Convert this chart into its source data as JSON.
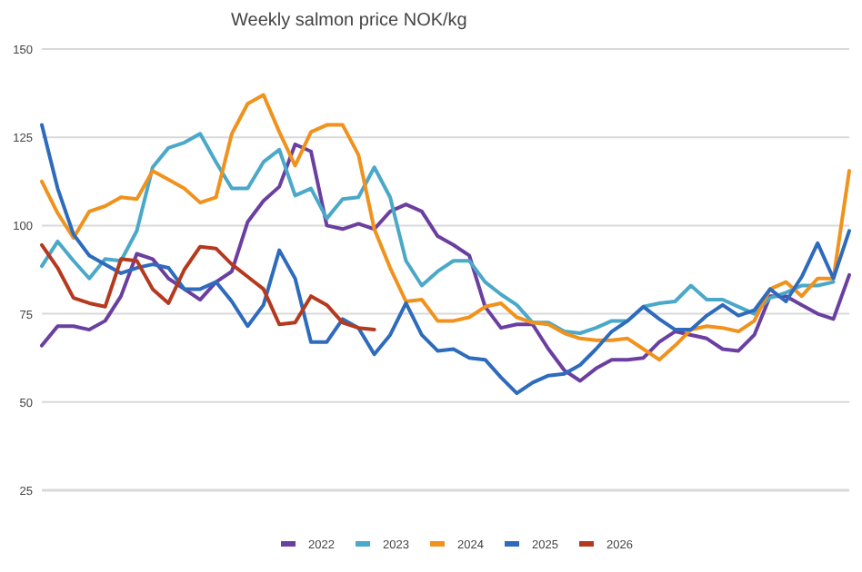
{
  "chart_data": {
    "type": "line",
    "title": "Weekly salmon price NOK/kg",
    "categories": [
      null,
      null,
      null,
      null,
      null,
      null,
      null,
      null,
      null,
      null,
      null,
      null,
      null,
      null,
      null,
      null,
      null,
      null,
      null,
      null,
      null,
      null,
      null,
      null,
      null,
      null,
      null,
      null,
      null,
      null,
      null,
      null,
      null,
      null,
      null,
      null,
      null,
      null,
      null,
      null,
      null,
      null,
      null,
      null,
      null,
      null,
      null,
      null,
      null,
      null,
      null,
      null
    ],
    "series": [
      {
        "name": "2022",
        "color": "#6b3fa0",
        "values": [
          66,
          71.5,
          71.5,
          70.5,
          73,
          80,
          92,
          90.5,
          85,
          82,
          79,
          84,
          87,
          101,
          107,
          111,
          123,
          121,
          100,
          99,
          100.5,
          99,
          104,
          106,
          104,
          97,
          94.5,
          91.5,
          77,
          71,
          72,
          72,
          65,
          59,
          56,
          59.5,
          62,
          62,
          62.5,
          67,
          70,
          69,
          68,
          65,
          64.5,
          69,
          80,
          80,
          77.5,
          75,
          73.5,
          86
        ]
      },
      {
        "name": "2023",
        "color": "#4aa8c8",
        "values": [
          88.5,
          95.5,
          90,
          85,
          90.5,
          90,
          98.5,
          116.5,
          122,
          123.5,
          126,
          118,
          110.5,
          110.5,
          118,
          121.5,
          108.5,
          110.5,
          102,
          107.5,
          108,
          116.5,
          108,
          90,
          83,
          87,
          90,
          90,
          84,
          80.5,
          77.5,
          72.5,
          72.5,
          70,
          69.5,
          71,
          73,
          73,
          77,
          78,
          78.5,
          83,
          79,
          79,
          77,
          75,
          79.5,
          81,
          83,
          83,
          84,
          null
        ]
      },
      {
        "name": "2024",
        "color": "#f0921c",
        "values": [
          112.5,
          103.5,
          96.5,
          104,
          105.5,
          108,
          107.5,
          115.5,
          113,
          110.5,
          106.5,
          108,
          126,
          134.5,
          137,
          126.5,
          117,
          126.5,
          128.5,
          128.5,
          120,
          99,
          88,
          78.5,
          79,
          73,
          73,
          74,
          77,
          78,
          74,
          72.5,
          72,
          69.5,
          68,
          67.5,
          67.5,
          68,
          65,
          62,
          66,
          70.5,
          71.5,
          71,
          70,
          73,
          82,
          84,
          80,
          85,
          85,
          115.5
        ]
      },
      {
        "name": "2025",
        "color": "#2e6bbd",
        "values": [
          128.5,
          110.5,
          97.5,
          91.5,
          89,
          86.5,
          88,
          89,
          88,
          82,
          82,
          84,
          78.5,
          71.5,
          77.5,
          93,
          85,
          67,
          67,
          73.5,
          71,
          63.5,
          69,
          78,
          69,
          64.5,
          65,
          62.5,
          62,
          57,
          52.5,
          55.5,
          57.5,
          58,
          60.5,
          65,
          70,
          73,
          77,
          73.5,
          70.5,
          70.5,
          74.5,
          77.5,
          74.5,
          76,
          82,
          78.5,
          85.5,
          95,
          85,
          98.5
        ]
      },
      {
        "name": "2026",
        "color": "#b5391f",
        "values": [
          94.5,
          88,
          79.5,
          78,
          77,
          90.5,
          90,
          82,
          78,
          87.5,
          94,
          93.5,
          89,
          85.5,
          82,
          72,
          72.5,
          80,
          77.5,
          72.5,
          71,
          70.5,
          null,
          null,
          null,
          null,
          null,
          null,
          null,
          null,
          null,
          null,
          null,
          null,
          null,
          null,
          null,
          null,
          null,
          null,
          null,
          null,
          null,
          null,
          null,
          null,
          null,
          null,
          null,
          null,
          null,
          null
        ]
      }
    ],
    "ylim": [
      25,
      150
    ],
    "yticks": [
      25,
      50,
      75,
      100,
      125,
      150
    ],
    "grid": "y",
    "legend": "bottom",
    "marker": "none",
    "line_style": "solid"
  }
}
